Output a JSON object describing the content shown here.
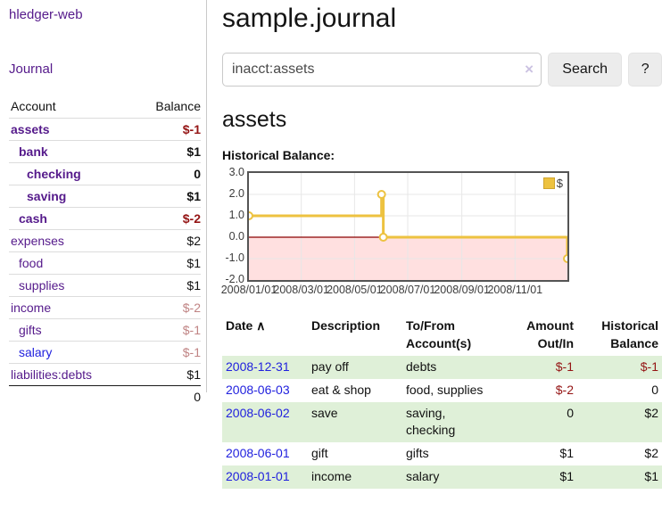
{
  "app": {
    "brand": "hledger-web"
  },
  "sidebar": {
    "nav_journal": "Journal",
    "accounts": {
      "header_account": "Account",
      "header_balance": "Balance",
      "rows": [
        {
          "name": "assets",
          "level": 0,
          "balance": "$-1",
          "bold": true,
          "balance_style": "neg"
        },
        {
          "name": "bank",
          "level": 1,
          "balance": "$1",
          "bold": true,
          "balance_style": ""
        },
        {
          "name": "checking",
          "level": 2,
          "balance": "0",
          "bold": true,
          "balance_style": ""
        },
        {
          "name": "saving",
          "level": 2,
          "balance": "$1",
          "bold": true,
          "balance_style": ""
        },
        {
          "name": "cash",
          "level": 1,
          "balance": "$-2",
          "bold": true,
          "balance_style": "neg"
        },
        {
          "name": "expenses",
          "level": 0,
          "balance": "$2",
          "bold": false,
          "balance_style": ""
        },
        {
          "name": "food",
          "level": 1,
          "balance": "$1",
          "bold": false,
          "balance_style": ""
        },
        {
          "name": "supplies",
          "level": 1,
          "balance": "$1",
          "bold": false,
          "balance_style": ""
        },
        {
          "name": "income",
          "level": 0,
          "balance": "$-2",
          "bold": false,
          "balance_style": "dimneg"
        },
        {
          "name": "gifts",
          "level": 1,
          "balance": "$-1",
          "bold": false,
          "balance_style": "dimneg"
        },
        {
          "name": "salary",
          "level": 1,
          "balance": "$-1",
          "bold": false,
          "balance_style": "dimneg",
          "blue": true
        },
        {
          "name": "liabilities:debts",
          "level": 0,
          "balance": "$1",
          "bold": false,
          "balance_style": ""
        }
      ],
      "total": "0"
    }
  },
  "header": {
    "title": "sample.journal"
  },
  "search": {
    "value": "inacct:assets",
    "clear_icon": "×",
    "search_button": "Search",
    "help_button": "?"
  },
  "account_view": {
    "heading": "assets",
    "chart_title": "Historical Balance:"
  },
  "chart_data": {
    "type": "line",
    "step": true,
    "title": "Historical Balance:",
    "series": [
      {
        "name": "$",
        "color": "#edc240",
        "points": [
          [
            "2008-01-01",
            1
          ],
          [
            "2008-06-01",
            2
          ],
          [
            "2008-06-03",
            0
          ],
          [
            "2008-12-31",
            -1
          ]
        ]
      }
    ],
    "xlim": [
      "2008-01-01",
      "2008-12-31"
    ],
    "ylim": [
      -2,
      3
    ],
    "y_ticks": [
      "3.0",
      "2.0",
      "1.0",
      "0.0",
      "-1.0",
      "-2.0"
    ],
    "x_ticks": [
      "2008/01/01",
      "2008/03/01",
      "2008/05/01",
      "2008/07/01",
      "2008/09/01",
      "2008/11/01"
    ],
    "legend": "$",
    "legend_position": "top-right",
    "grid": true,
    "zero_line_color": "#8b0000",
    "negative_region_color": "rgba(255,0,0,0.12)"
  },
  "register": {
    "headers": {
      "date": "Date",
      "sort_icon": "∧",
      "description": "Description",
      "accounts": "To/From Account(s)",
      "amount": "Amount Out/In",
      "balance": "Historical Balance"
    },
    "rows": [
      {
        "date": "2008-12-31",
        "description": "pay off",
        "accounts": "debts",
        "amount": "$-1",
        "balance": "$-1",
        "amount_neg": true,
        "balance_neg": true
      },
      {
        "date": "2008-06-03",
        "description": "eat & shop",
        "accounts": "food, supplies",
        "amount": "$-2",
        "balance": "0",
        "amount_neg": true,
        "balance_neg": false
      },
      {
        "date": "2008-06-02",
        "description": "save",
        "accounts": "saving,\nchecking",
        "amount": "0",
        "balance": "$2",
        "amount_neg": false,
        "balance_neg": false
      },
      {
        "date": "2008-06-01",
        "description": "gift",
        "accounts": "gifts",
        "amount": "$1",
        "balance": "$2",
        "amount_neg": false,
        "balance_neg": false
      },
      {
        "date": "2008-01-01",
        "description": "income",
        "accounts": "salary",
        "amount": "$1",
        "balance": "$1",
        "amount_neg": false,
        "balance_neg": false
      }
    ]
  }
}
